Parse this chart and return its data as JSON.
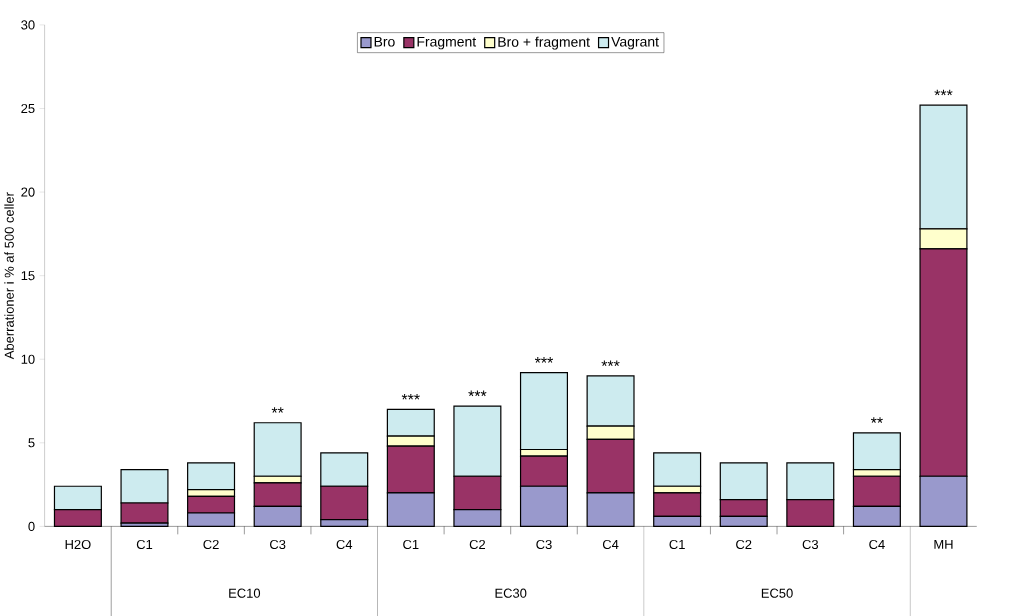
{
  "chart_data": {
    "type": "bar",
    "stacked": true,
    "ylabel": "Aberrationer i % af 500 celler",
    "categories": [
      "H2O",
      "C1",
      "C2",
      "C3",
      "C4",
      "C1",
      "C2",
      "C3",
      "C4",
      "C1",
      "C2",
      "C3",
      "C4",
      "MH"
    ],
    "series": [
      {
        "name": "Bro",
        "color": "#9999cc",
        "values": [
          0,
          0.2,
          0.8,
          1.2,
          0.4,
          2.0,
          1.0,
          2.4,
          2.0,
          0.6,
          0.6,
          0,
          1.2,
          3.0
        ]
      },
      {
        "name": "Fragment",
        "color": "#993366",
        "values": [
          1.0,
          1.2,
          1.0,
          1.4,
          2.0,
          2.8,
          2.0,
          1.8,
          3.2,
          1.4,
          1.0,
          1.6,
          1.8,
          13.6
        ]
      },
      {
        "name": "Bro + fragment",
        "color": "#ffffcc",
        "values": [
          0,
          0,
          0.4,
          0.4,
          0,
          0.6,
          0,
          0.4,
          0.8,
          0.4,
          0,
          0,
          0.4,
          1.2
        ]
      },
      {
        "name": "Vagrant",
        "color": "#cdebef",
        "values": [
          1.4,
          2.0,
          1.6,
          3.2,
          2.0,
          1.6,
          4.2,
          4.6,
          3.0,
          2.0,
          2.2,
          2.2,
          2.2,
          7.4
        ]
      }
    ],
    "totals": [
      null,
      null,
      null,
      "**",
      null,
      "***",
      "***",
      "***",
      "***",
      null,
      null,
      null,
      "**",
      "***"
    ],
    "annotations": [
      "EC10",
      "EC30",
      "EC50"
    ],
    "ylim": [
      0,
      30
    ],
    "yticks": [
      0,
      5,
      10,
      15,
      20,
      25,
      30
    ],
    "legend": "top",
    "grid": false
  }
}
